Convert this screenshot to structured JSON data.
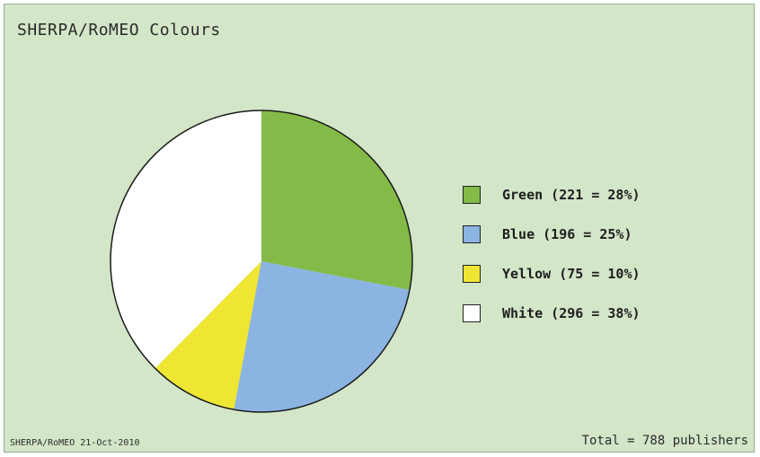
{
  "chart_data": {
    "type": "pie",
    "title": "SHERPA/RoMEO Colours",
    "categories": [
      "Green",
      "Blue",
      "Yellow",
      "White"
    ],
    "values": [
      221,
      196,
      75,
      296
    ],
    "percentages": [
      28,
      25,
      10,
      38
    ],
    "legend_labels": [
      "Green (221 = 28%)",
      "Blue (196 = 25%)",
      "Yellow (75 = 10%)",
      "White (296 = 38%)"
    ],
    "colors": [
      "#84bb48",
      "#8cb4e2",
      "#eee633",
      "#ffffff"
    ],
    "legend_position": "right",
    "start_angle": "top, clockwise"
  },
  "footer": {
    "left": "SHERPA/RoMEO 21-Oct-2010",
    "right": "Total = 788 publishers"
  }
}
